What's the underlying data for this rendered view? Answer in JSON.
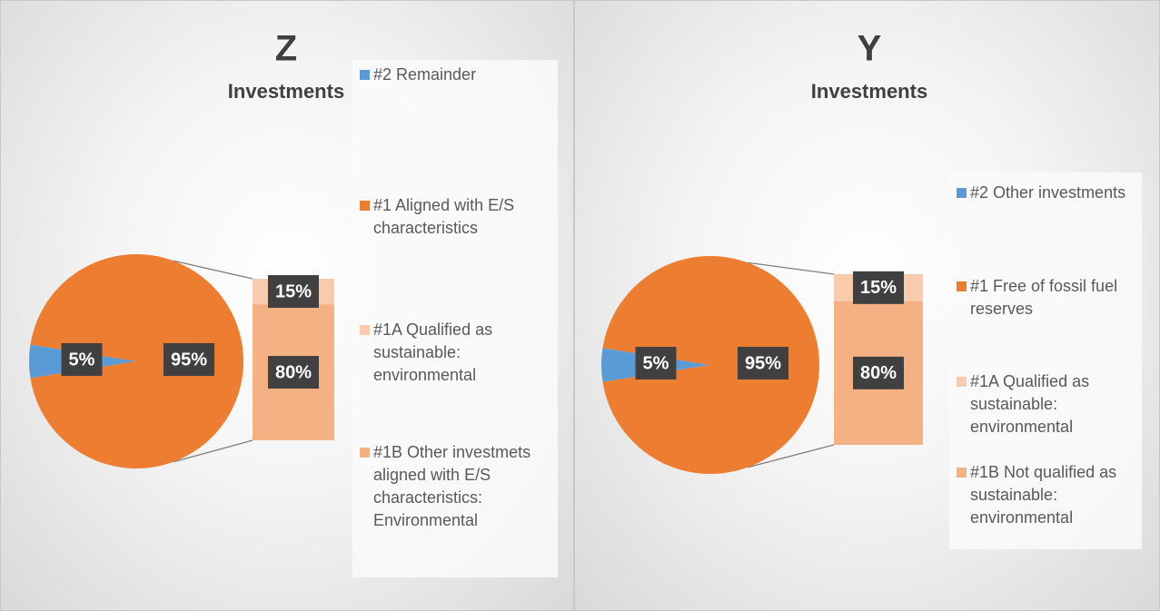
{
  "chart_data": [
    {
      "type": "bar-of-pie",
      "title": "Z",
      "subtitle": "Investments",
      "categories": [
        "#2 Remainder",
        "#1 Aligned with E/S characteristics",
        "#1A Qualified as sustainable: environmental",
        "#1B Other investmets aligned with E/S characteristics: Environmental"
      ],
      "values": [
        5,
        95,
        15,
        80
      ],
      "value_labels": [
        "5%",
        "95%",
        "15%",
        "80%"
      ],
      "colors": [
        "#5b9bd5",
        "#ed7d31",
        "#f8cbad",
        "#f4b183"
      ]
    },
    {
      "type": "bar-of-pie",
      "title": "Y",
      "subtitle": "Investments",
      "categories": [
        "#2 Other investments",
        "#1 Free of fossil fuel reserves",
        "#1A Qualified as sustainable: environmental",
        "#1B Not qualified as sustainable: environmental"
      ],
      "values": [
        5,
        95,
        15,
        80
      ],
      "value_labels": [
        "5%",
        "95%",
        "15%",
        "80%"
      ],
      "colors": [
        "#5b9bd5",
        "#ed7d31",
        "#f8cbad",
        "#f4b183"
      ]
    }
  ]
}
